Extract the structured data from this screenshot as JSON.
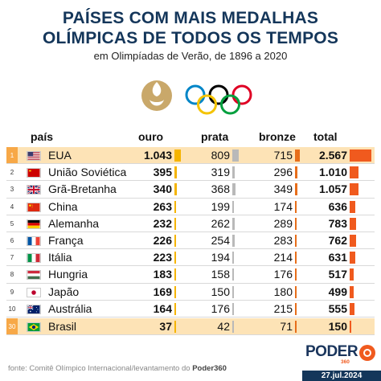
{
  "title_line1": "PAÍSES COM MAIS MEDALHAS",
  "title_line2": "OLÍMPICAS DE TODOS OS TEMPOS",
  "subtitle": "em Olimpíadas de Verão, de 1896 a 2020",
  "headers": {
    "pais": "país",
    "ouro": "ouro",
    "prata": "prata",
    "bronze": "bronze",
    "total": "total"
  },
  "colors": {
    "ouro": "#f5b400",
    "prata": "#b9b9b9",
    "bronze": "#e76e1a",
    "total": "#f05a1e",
    "highlight": "#fde3b6",
    "navy": "#14365a"
  },
  "rows": [
    {
      "rank": "1",
      "flag": "flag-usa",
      "name": "EUA",
      "ouro": "1.043",
      "prata": "809",
      "bronze": "715",
      "total": "2.567",
      "ouro_v": 1043,
      "prata_v": 809,
      "bronze_v": 715,
      "total_v": 2567
    },
    {
      "rank": "2",
      "flag": "flag-ussr",
      "name": "União Soviética",
      "ouro": "395",
      "prata": "319",
      "bronze": "296",
      "total": "1.010",
      "ouro_v": 395,
      "prata_v": 319,
      "bronze_v": 296,
      "total_v": 1010
    },
    {
      "rank": "3",
      "flag": "flag-uk",
      "name": "Grã-Bretanha",
      "ouro": "340",
      "prata": "368",
      "bronze": "349",
      "total": "1.057",
      "ouro_v": 340,
      "prata_v": 368,
      "bronze_v": 349,
      "total_v": 1057
    },
    {
      "rank": "4",
      "flag": "flag-china",
      "name": "China",
      "ouro": "263",
      "prata": "199",
      "bronze": "174",
      "total": "636",
      "ouro_v": 263,
      "prata_v": 199,
      "bronze_v": 174,
      "total_v": 636
    },
    {
      "rank": "5",
      "flag": "flag-germany",
      "name": "Alemanha",
      "ouro": "232",
      "prata": "262",
      "bronze": "289",
      "total": "783",
      "ouro_v": 232,
      "prata_v": 262,
      "bronze_v": 289,
      "total_v": 783
    },
    {
      "rank": "6",
      "flag": "flag-france",
      "name": "França",
      "ouro": "226",
      "prata": "254",
      "bronze": "283",
      "total": "762",
      "ouro_v": 226,
      "prata_v": 254,
      "bronze_v": 283,
      "total_v": 762
    },
    {
      "rank": "7",
      "flag": "flag-italy",
      "name": "Itália",
      "ouro": "223",
      "prata": "194",
      "bronze": "214",
      "total": "631",
      "ouro_v": 223,
      "prata_v": 194,
      "bronze_v": 214,
      "total_v": 631
    },
    {
      "rank": "8",
      "flag": "flag-hungary",
      "name": "Hungria",
      "ouro": "183",
      "prata": "158",
      "bronze": "176",
      "total": "517",
      "ouro_v": 183,
      "prata_v": 158,
      "bronze_v": 176,
      "total_v": 517
    },
    {
      "rank": "9",
      "flag": "flag-japan",
      "name": "Japão",
      "ouro": "169",
      "prata": "150",
      "bronze": "180",
      "total": "499",
      "ouro_v": 169,
      "prata_v": 150,
      "bronze_v": 180,
      "total_v": 499
    },
    {
      "rank": "10",
      "flag": "flag-australia",
      "name": "Austrália",
      "ouro": "164",
      "prata": "176",
      "bronze": "215",
      "total": "555",
      "ouro_v": 164,
      "prata_v": 176,
      "bronze_v": 215,
      "total_v": 555
    },
    {
      "rank": "30",
      "flag": "flag-brazil",
      "name": "Brasil",
      "ouro": "37",
      "prata": "42",
      "bronze": "71",
      "total": "150",
      "ouro_v": 37,
      "prata_v": 42,
      "bronze_v": 71,
      "total_v": 150
    }
  ],
  "footer": {
    "source_prefix": "fonte: Comitê Olímpico Internacional/levantamento do ",
    "source_brand": "Poder360",
    "brand": "PODER",
    "brand_sub": "360",
    "date": "27.jul.2024"
  }
}
